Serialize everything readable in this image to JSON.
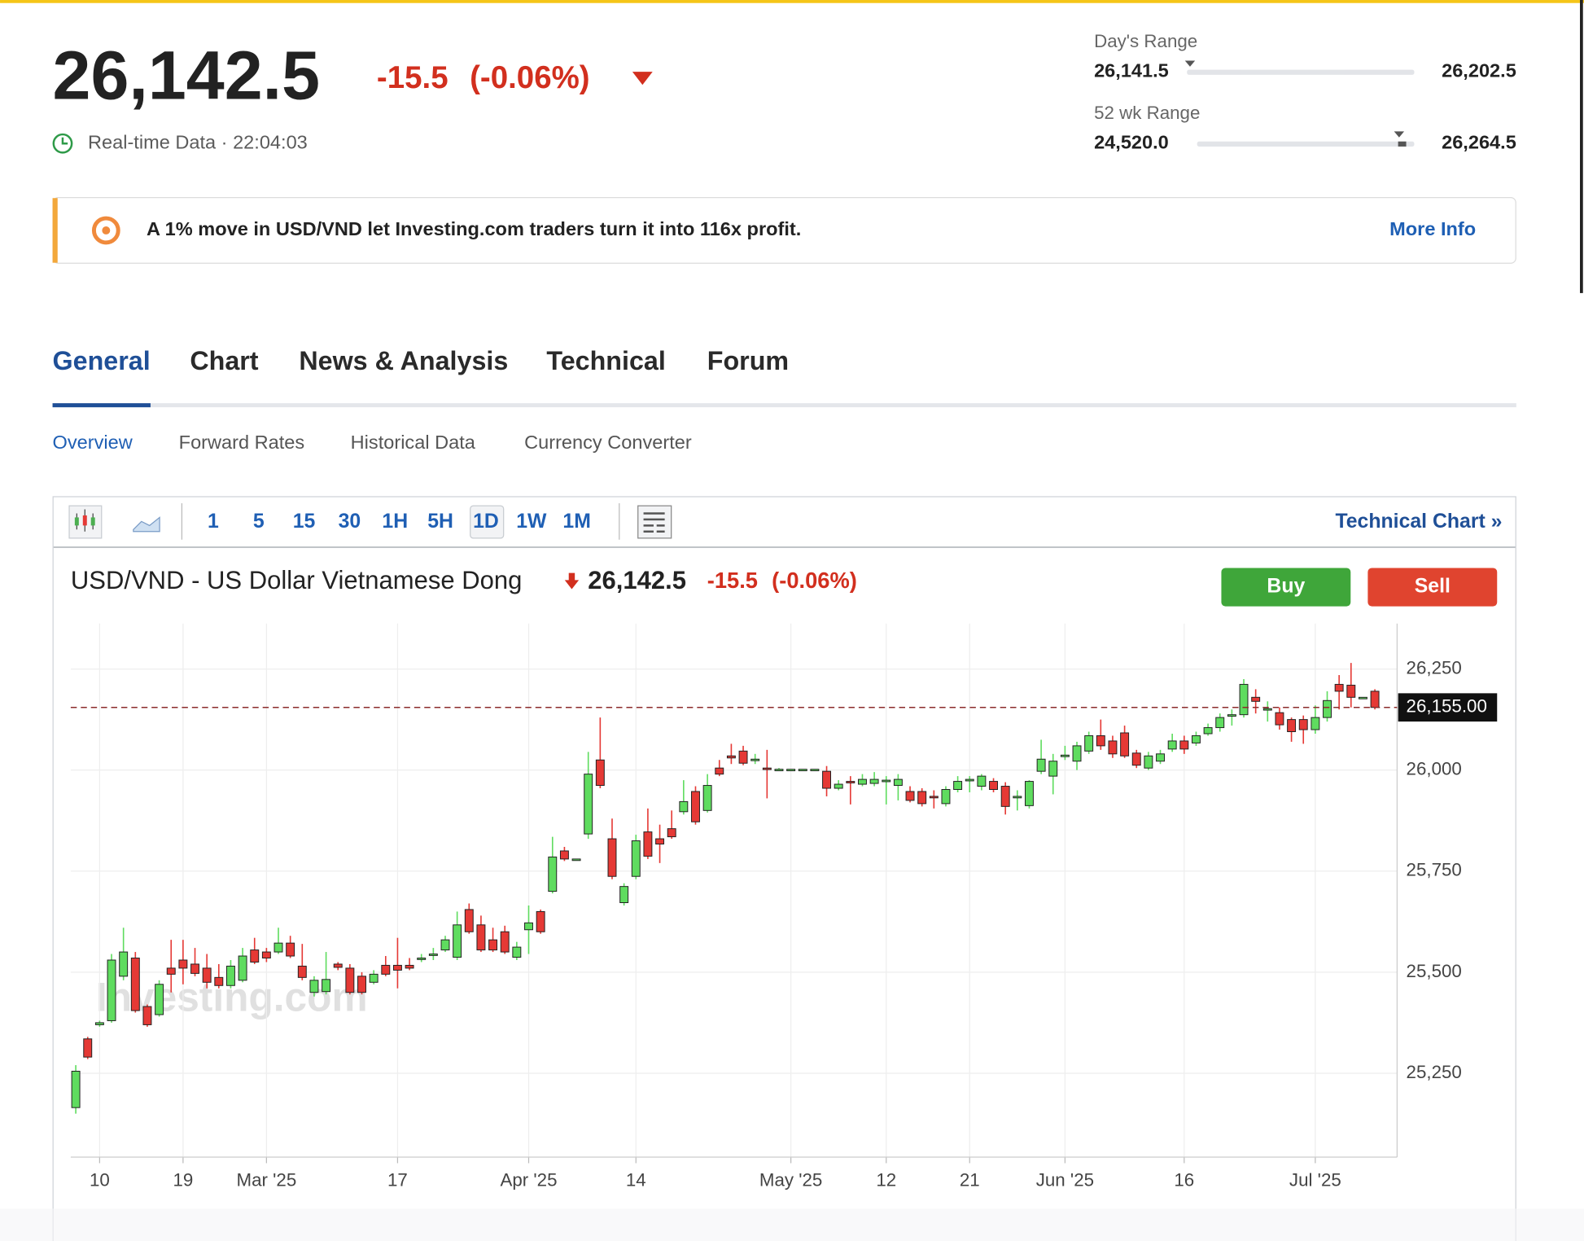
{
  "header": {
    "price": "26,142.5",
    "change": "-15.5",
    "change_pct": "(-0.06%)",
    "realtime": "Real-time Data · 22:04:03",
    "days_range": {
      "label": "Day's Range",
      "low": "26,141.5",
      "high": "26,202.5"
    },
    "wk52_range": {
      "label": "52 wk Range",
      "low": "24,520.0",
      "high": "26,264.5"
    }
  },
  "banner": {
    "text": "A 1% move in USD/VND let Investing.com traders turn it into 116x profit.",
    "link": "More Info"
  },
  "tabs": [
    "General",
    "Chart",
    "News & Analysis",
    "Technical",
    "Forum"
  ],
  "subtabs": [
    "Overview",
    "Forward Rates",
    "Historical Data",
    "Currency Converter"
  ],
  "toolbar": {
    "intervals": [
      "1",
      "5",
      "15",
      "30",
      "1H",
      "5H",
      "1D",
      "1W",
      "1M"
    ],
    "link": "Technical Chart »"
  },
  "buttons": {
    "buy": "Buy",
    "sell": "Sell"
  },
  "chart_data": {
    "type": "candlestick",
    "title": "USD/VND - US Dollar Vietnamese Dong",
    "price": "26,142.5",
    "change": "-15.5",
    "change_pct": "(-0.06%)",
    "watermark": "Investing.com",
    "categories": [
      null,
      null,
      "10",
      null,
      null,
      null,
      null,
      null,
      null,
      "19",
      null,
      null,
      null,
      null,
      null,
      null,
      "Mar '25",
      null,
      null,
      null,
      null,
      null,
      null,
      null,
      null,
      null,
      null,
      "17",
      null,
      null,
      null,
      null,
      null,
      null,
      null,
      null,
      null,
      null,
      "Apr '25",
      null,
      null,
      null,
      null,
      null,
      null,
      null,
      null,
      "14",
      null,
      null,
      null,
      null,
      null,
      null,
      null,
      null,
      null,
      null,
      null,
      null,
      "May '25",
      null,
      null,
      null,
      null,
      null,
      null,
      null,
      "12",
      null,
      null,
      null,
      null,
      null,
      null,
      "21",
      null,
      null,
      null,
      null,
      null,
      null,
      null,
      "Jun '25",
      null,
      null,
      null,
      null,
      null,
      null,
      null,
      null,
      null,
      "16",
      null,
      null,
      null,
      null,
      null,
      null,
      null,
      null,
      null,
      null,
      "Jul '25",
      null,
      null,
      null,
      null,
      null
    ],
    "open": [
      25165,
      25335,
      25370,
      25380,
      25490,
      25535,
      25415,
      25395,
      25510,
      25530,
      25520,
      25510,
      25487,
      25467,
      25480,
      25555,
      25550,
      25550,
      25572,
      25515,
      25450,
      25452,
      25520,
      25510,
      25490,
      25475,
      25517,
      25517,
      25517,
      25532,
      25545,
      25555,
      25537,
      25655,
      25617,
      25580,
      25600,
      25537,
      25605,
      25650,
      25700,
      25800,
      25780,
      25842,
      26025,
      25830,
      25672,
      25737,
      25847,
      25830,
      25855,
      25897,
      25947,
      25900,
      26005,
      26035,
      26047,
      26027,
      26005,
      26002,
      26002,
      26002,
      26002,
      25997,
      25955,
      25972,
      25965,
      25967,
      25972,
      25962,
      25947,
      25947,
      25935,
      25917,
      25952,
      25975,
      25960,
      25972,
      25960,
      25935,
      25912,
      25997,
      25985,
      26035,
      26022,
      26047,
      26085,
      26072,
      26092,
      26042,
      26005,
      26022,
      26052,
      26072,
      26067,
      26090,
      26105,
      26135,
      26137,
      26180,
      26152,
      26142,
      26125,
      26125,
      26100,
      26130,
      26212,
      26210,
      26180,
      26195
    ],
    "high": [
      25270,
      25340,
      25380,
      25545,
      25610,
      25550,
      25420,
      25480,
      25580,
      25580,
      25560,
      25545,
      25520,
      25530,
      25560,
      25585,
      25560,
      25610,
      25590,
      25570,
      25490,
      25550,
      25525,
      25520,
      25500,
      25505,
      25540,
      25585,
      25535,
      25545,
      25560,
      25590,
      25650,
      25670,
      25640,
      25610,
      25615,
      25575,
      25665,
      25655,
      25835,
      25810,
      25780,
      26045,
      26130,
      25880,
      25720,
      25840,
      25905,
      25865,
      25900,
      25975,
      25960,
      25990,
      26025,
      26065,
      26060,
      26040,
      26050,
      26005,
      26002,
      26002,
      26002,
      26010,
      25975,
      25985,
      25990,
      25995,
      25985,
      25990,
      25960,
      25955,
      25950,
      25960,
      25985,
      25985,
      25990,
      25980,
      25970,
      25950,
      25975,
      26075,
      26040,
      26060,
      26070,
      26095,
      26125,
      26085,
      26110,
      26050,
      26045,
      26050,
      26090,
      26085,
      26095,
      26115,
      26140,
      26150,
      26225,
      26200,
      26170,
      26155,
      26130,
      26135,
      26160,
      26195,
      26235,
      26265,
      26180,
      26200
    ],
    "low": [
      25150,
      25285,
      25365,
      25375,
      25480,
      25400,
      25365,
      25390,
      25450,
      25470,
      25490,
      25460,
      25460,
      25460,
      25475,
      25520,
      25525,
      25545,
      25535,
      25480,
      25440,
      25445,
      25505,
      25445,
      25445,
      25470,
      25490,
      25460,
      25505,
      25525,
      25530,
      25550,
      25530,
      25595,
      25550,
      25550,
      25545,
      25530,
      25545,
      25595,
      25695,
      25775,
      25780,
      25830,
      25955,
      25730,
      25665,
      25730,
      25780,
      25770,
      25830,
      25890,
      25865,
      25895,
      25985,
      26015,
      26012,
      26015,
      25930,
      26000,
      26002,
      26002,
      26002,
      25935,
      25950,
      25915,
      25960,
      25960,
      25915,
      25925,
      25920,
      25910,
      25905,
      25910,
      25945,
      25945,
      25950,
      25945,
      25890,
      25900,
      25905,
      25990,
      25940,
      26025,
      26000,
      26040,
      26050,
      26030,
      26030,
      26005,
      26000,
      26015,
      26045,
      26040,
      26060,
      26085,
      26095,
      26110,
      26130,
      26140,
      26120,
      26100,
      26070,
      26065,
      26090,
      26120,
      26150,
      26155,
      26180,
      26150
    ],
    "close": [
      25255,
      25290,
      25375,
      25530,
      25550,
      25405,
      25370,
      25470,
      25495,
      25510,
      25497,
      25475,
      25467,
      25515,
      25540,
      25525,
      25535,
      25572,
      25540,
      25487,
      25480,
      25482,
      25512,
      25450,
      25450,
      25495,
      25495,
      25505,
      25510,
      25535,
      25545,
      25580,
      25617,
      25600,
      25555,
      25555,
      25550,
      25562,
      25622,
      25600,
      25785,
      25780,
      25780,
      25990,
      25962,
      25737,
      25712,
      25825,
      25787,
      25817,
      25835,
      25922,
      25872,
      25962,
      25990,
      26030,
      26017,
      26027,
      26002,
      26002,
      26002,
      26002,
      26002,
      25955,
      25965,
      25970,
      25977,
      25977,
      25975,
      25977,
      25925,
      25917,
      25932,
      25952,
      25972,
      25977,
      25985,
      25952,
      25910,
      25935,
      25972,
      26027,
      26022,
      26037,
      26060,
      26085,
      26060,
      26040,
      26035,
      26012,
      26035,
      26040,
      26072,
      26052,
      26085,
      26105,
      26130,
      26137,
      26212,
      26170,
      26152,
      26112,
      26095,
      26100,
      26130,
      26172,
      26195,
      26180,
      26180,
      26155
    ],
    "ylim": [
      25042.5,
      26362.5
    ],
    "yticks": [
      {
        "value": 25250,
        "label": "25,250"
      },
      {
        "value": 25500,
        "label": "25,500"
      },
      {
        "value": 25750,
        "label": "25,750"
      },
      {
        "value": 26000,
        "label": "26,000"
      },
      {
        "value": 26250,
        "label": "26,250"
      }
    ],
    "current": {
      "value": 26155,
      "label": "26,155.00"
    },
    "up_color": "#5fdc5f",
    "down_color": "#e53935",
    "grid": true
  }
}
